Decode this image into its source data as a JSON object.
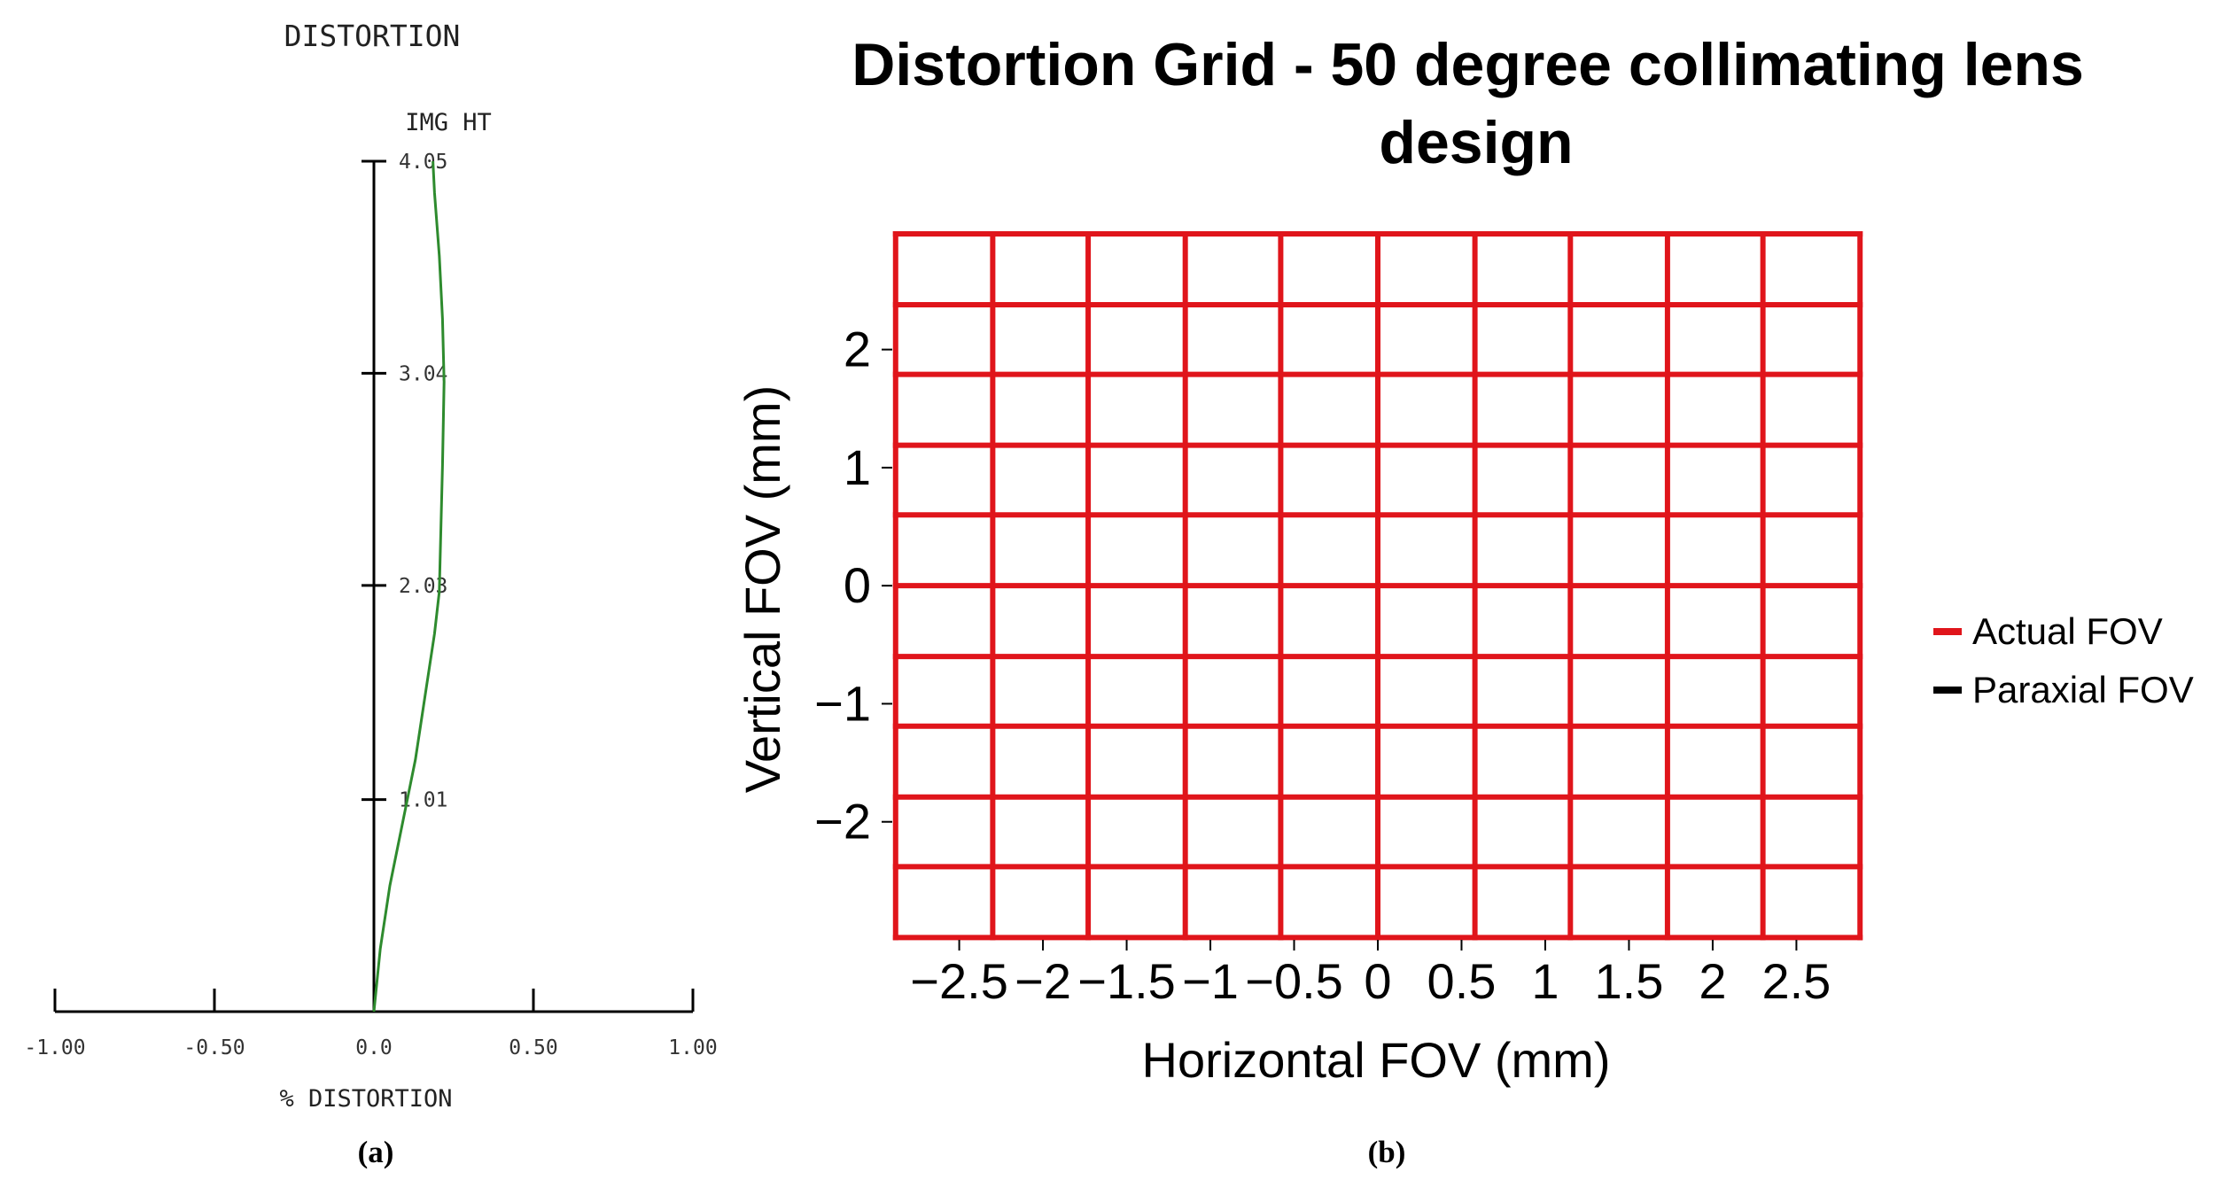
{
  "chart_data": [
    {
      "type": "line",
      "title": "DISTORTION",
      "ylabel": "IMG HT",
      "xlabel": "% DISTORTION",
      "panel_label": "(a)",
      "xlim": [
        -1.0,
        1.0
      ],
      "ylim": [
        0,
        4.05
      ],
      "x_ticks": [
        -1.0,
        -0.5,
        0.0,
        0.5,
        1.0
      ],
      "x_tick_labels": [
        "-1.00",
        "-0.50",
        "0.0",
        "0.50",
        "1.00"
      ],
      "y_ticks": [
        1.01,
        2.03,
        3.04,
        4.05
      ],
      "y_tick_labels": [
        "1.01",
        "2.03",
        "3.04",
        "4.05"
      ],
      "series": [
        {
          "color": "#2e8b2e",
          "x": [
            0.0,
            0.02,
            0.05,
            0.09,
            0.13,
            0.16,
            0.19,
            0.205,
            0.21,
            0.215,
            0.22,
            0.215,
            0.205,
            0.19,
            0.185
          ],
          "y": [
            0.0,
            0.3,
            0.6,
            0.9,
            1.2,
            1.5,
            1.8,
            2.0,
            2.3,
            2.6,
            3.0,
            3.3,
            3.6,
            3.9,
            4.05
          ]
        }
      ]
    },
    {
      "type": "line",
      "title": "Distortion Grid - 50 degree collimating lens design",
      "xlabel": "Horizontal FOV (mm)",
      "ylabel": "Vertical FOV (mm)",
      "panel_label": "(b)",
      "xlim": [
        -2.9,
        2.9
      ],
      "ylim": [
        -3.0,
        2.95
      ],
      "x_ticks": [
        -2.5,
        -2,
        -1.5,
        -1,
        -0.5,
        0,
        0.5,
        1,
        1.5,
        2,
        2.5
      ],
      "x_tick_labels": [
        "−2.5",
        "−2",
        "−1.5",
        "−1",
        "−0.5",
        "0",
        "0.5",
        "1",
        "1.5",
        "2",
        "2.5"
      ],
      "y_ticks": [
        -2,
        -1,
        0,
        1,
        2
      ],
      "y_tick_labels": [
        "−2",
        "−1",
        "0",
        "1",
        "2"
      ],
      "grid_x": [
        -2.88,
        -2.3,
        -1.73,
        -1.15,
        -0.58,
        0.0,
        0.58,
        1.15,
        1.73,
        2.3,
        2.88
      ],
      "grid_y": [
        -2.98,
        -2.38,
        -1.79,
        -1.19,
        -0.6,
        0.0,
        0.6,
        1.19,
        1.79,
        2.38,
        2.98
      ],
      "legend_position": "right",
      "series": [
        {
          "name": "Actual FOV",
          "color": "#e0151b"
        },
        {
          "name": "Paraxial FOV",
          "color": "#000000"
        }
      ]
    }
  ]
}
